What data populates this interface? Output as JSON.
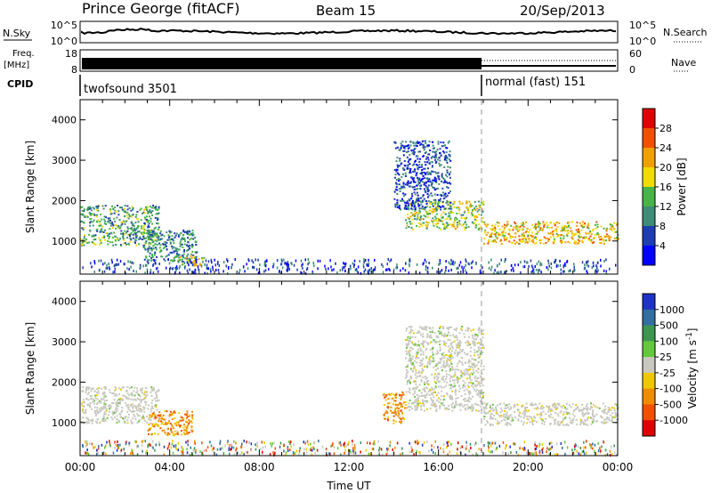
{
  "header": {
    "station": "Prince George (fitACF)",
    "beam": "Beam 15",
    "date": "20/Sep/2013"
  },
  "summary_panels": {
    "nsky": {
      "label": "N.Sky",
      "tick_top": "10^5",
      "tick_bottom": "10^0",
      "right_tick_top": "10^5",
      "right_tick_bottom": "10^0",
      "right_label": "N.Search"
    },
    "freq": {
      "label_line1": "Freq.",
      "label_line2": "[MHz]",
      "tick_top": "18",
      "tick_bottom": "8",
      "right_tick_top": "60",
      "right_tick_bottom": "0",
      "right_label": "Nave"
    },
    "cpid": {
      "label": "CPID",
      "modes": [
        {
          "name": "twofsound 3501",
          "start_hour": 0,
          "end_hour": 18
        },
        {
          "name": "normal (fast) 151",
          "start_hour": 18,
          "end_hour": 24
        }
      ]
    }
  },
  "chart_data": [
    {
      "type": "heatmap",
      "name": "Power",
      "ylabel": "Slant Range [km]",
      "xlabel": "",
      "ylim": [
        180,
        4500
      ],
      "y_ticks": [
        "1000",
        "2000",
        "3000",
        "4000"
      ],
      "xlim": [
        0,
        24
      ],
      "colorbar": {
        "label": "Power [dB]",
        "ticks": [
          "4",
          "8",
          "12",
          "16",
          "20",
          "24",
          "28"
        ],
        "range": [
          0,
          32
        ],
        "colors": [
          "#0000ff",
          "#1e3cb4",
          "#3c8c78",
          "#46b446",
          "#f0dc00",
          "#f0a000",
          "#f05000",
          "#e10000"
        ]
      },
      "regions": [
        {
          "t0": 0.0,
          "t1": 3.5,
          "r0": 900,
          "r1": 1900,
          "level": 14
        },
        {
          "t0": 2.8,
          "t1": 5.2,
          "r0": 500,
          "r1": 1300,
          "level": 12
        },
        {
          "t0": 4.3,
          "t1": 5.5,
          "r0": 400,
          "r1": 650,
          "level": 20
        },
        {
          "t0": 14.5,
          "t1": 18.0,
          "r0": 1300,
          "r1": 2000,
          "level": 18
        },
        {
          "t0": 14.0,
          "t1": 16.5,
          "r0": 1800,
          "r1": 3500,
          "level": 8
        },
        {
          "t0": 18.0,
          "t1": 24.0,
          "r0": 950,
          "r1": 1500,
          "level": 22
        }
      ]
    },
    {
      "type": "heatmap",
      "name": "Velocity",
      "ylabel": "Slant Range [km]",
      "xlabel": "Time UT",
      "ylim": [
        180,
        4500
      ],
      "y_ticks": [
        "1000",
        "2000",
        "3000",
        "4000"
      ],
      "xlim": [
        0,
        24
      ],
      "x_ticks": [
        "00:00",
        "04:00",
        "08:00",
        "12:00",
        "16:00",
        "20:00",
        "00:00"
      ],
      "colorbar": {
        "label": "Velocity [m s^-1]",
        "ticks": [
          "1000",
          "500",
          "100",
          "25",
          "-25",
          "-100",
          "-500",
          "-1000"
        ],
        "colors": [
          "#1e32c8",
          "#326ea0",
          "#3c9650",
          "#64c83c",
          "#c8c8c0",
          "#f0c800",
          "#f08c00",
          "#f05000",
          "#e10000"
        ]
      },
      "regions": [
        {
          "t0": 0.0,
          "t1": 3.5,
          "r0": 1000,
          "r1": 1900,
          "category": "ground"
        },
        {
          "t0": 3.0,
          "t1": 5.0,
          "r0": 700,
          "r1": 1300,
          "category": "negative"
        },
        {
          "t0": 13.5,
          "t1": 14.5,
          "r0": 1000,
          "r1": 1800,
          "category": "negative"
        },
        {
          "t0": 14.5,
          "t1": 18.0,
          "r0": 1300,
          "r1": 3400,
          "category": "ground"
        },
        {
          "t0": 18.0,
          "t1": 24.0,
          "r0": 950,
          "r1": 1500,
          "category": "ground"
        }
      ]
    }
  ]
}
